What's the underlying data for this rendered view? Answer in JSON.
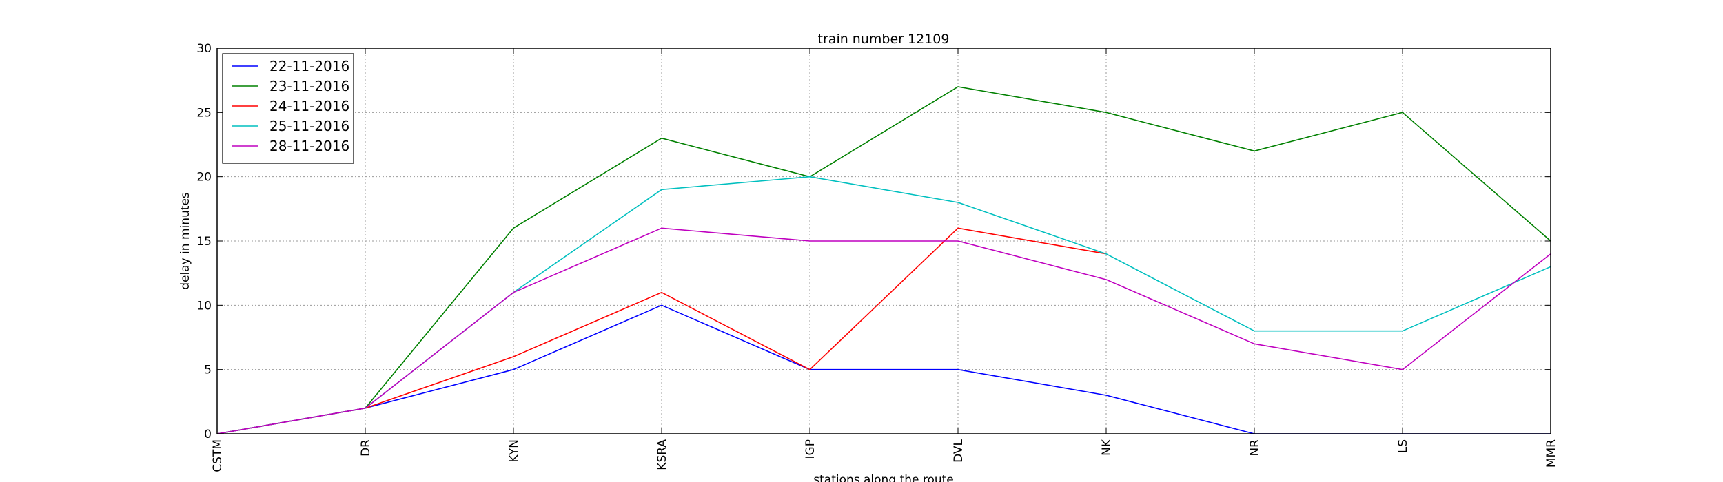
{
  "chart_data": {
    "type": "line",
    "title": "train number 12109",
    "xlabel": "stations along the route",
    "ylabel": "delay in minutes",
    "categories": [
      "CSTM",
      "DR",
      "KYN",
      "KSRA",
      "IGP",
      "DVL",
      "NK",
      "NR",
      "LS",
      "MMR"
    ],
    "ylim": [
      0,
      30
    ],
    "yticks": [
      0,
      5,
      10,
      15,
      20,
      25,
      30
    ],
    "grid": true,
    "legend_position": "top-left",
    "series": [
      {
        "name": "22-11-2016",
        "color": "#0000ff",
        "values": [
          0,
          2,
          5,
          10,
          5,
          5,
          3,
          0,
          0,
          0
        ]
      },
      {
        "name": "23-11-2016",
        "color": "#008000",
        "values": [
          0,
          2,
          16,
          23,
          20,
          27,
          25,
          22,
          25,
          15
        ]
      },
      {
        "name": "24-11-2016",
        "color": "#ff0000",
        "values": [
          0,
          2,
          6,
          11,
          5,
          16,
          14,
          null,
          null,
          null
        ]
      },
      {
        "name": "25-11-2016",
        "color": "#00bfbf",
        "values": [
          0,
          2,
          11,
          19,
          20,
          18,
          14,
          8,
          8,
          13
        ]
      },
      {
        "name": "28-11-2016",
        "color": "#bf00bf",
        "values": [
          0,
          2,
          11,
          16,
          15,
          15,
          12,
          7,
          5,
          14
        ]
      }
    ]
  }
}
